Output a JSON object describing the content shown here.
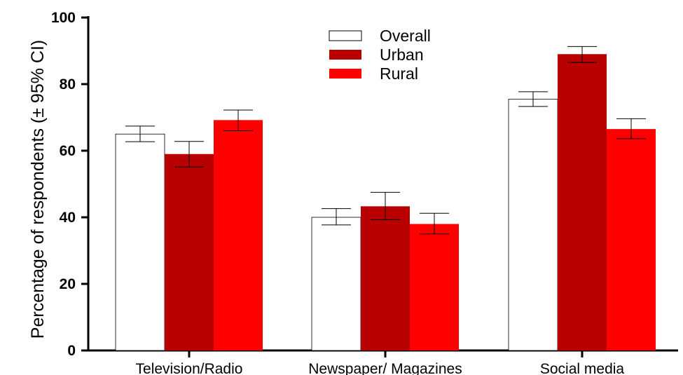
{
  "chart_data": {
    "type": "bar",
    "ylabel": "Percentage of respondents (± 95% CI)",
    "ylim": [
      0,
      100
    ],
    "yticks": [
      "0",
      "20",
      "40",
      "60",
      "80",
      "100"
    ],
    "categories": [
      "Television/Radio",
      "Newspaper/ Magazines",
      "Social media"
    ],
    "series": [
      {
        "name": "Overall",
        "color": "#ffffff",
        "values": [
          65,
          40,
          75.5
        ],
        "ci_low": [
          62.7,
          37.7,
          73.3
        ],
        "ci_high": [
          67.4,
          42.6,
          77.7
        ]
      },
      {
        "name": "Urban",
        "color": "#b80000",
        "values": [
          59,
          43.3,
          89
        ],
        "ci_low": [
          55.1,
          39.3,
          86.5
        ],
        "ci_high": [
          62.8,
          47.5,
          91.3
        ]
      },
      {
        "name": "Rural",
        "color": "#ff0000",
        "values": [
          69.2,
          38,
          66.5
        ],
        "ci_low": [
          66,
          35,
          63.6
        ],
        "ci_high": [
          72.2,
          41.2,
          69.6
        ]
      }
    ],
    "legend_position": "top-center",
    "grid": false
  }
}
